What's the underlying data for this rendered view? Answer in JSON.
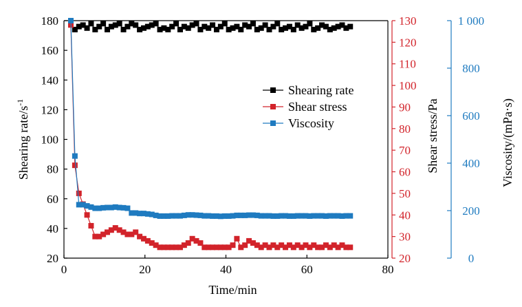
{
  "colors": {
    "shearing_rate": "#000000",
    "shear_stress": "#d2232a",
    "viscosity": "#1f7bc0"
  },
  "chart_data": {
    "type": "line",
    "xlabel": "Time/min",
    "xlim": [
      0,
      80
    ],
    "xticks": [
      "0",
      "20",
      "40",
      "60",
      "80"
    ],
    "axes": {
      "left": {
        "label": "Shearing rate/s",
        "label_superscript": "-1",
        "lim": [
          20,
          180
        ],
        "ticks": [
          "20",
          "40",
          "60",
          "80",
          "100",
          "120",
          "140",
          "160",
          "180"
        ]
      },
      "right_inner": {
        "label": "Shear stress/Pa",
        "lim": [
          20,
          130
        ],
        "ticks": [
          "20",
          "30",
          "40",
          "50",
          "60",
          "70",
          "80",
          "90",
          "100",
          "110",
          "120",
          "130"
        ]
      },
      "right_outer": {
        "label": "Viscosity/(mPa·s)",
        "lim": [
          0,
          1000
        ],
        "ticks": [
          "0",
          "200",
          "400",
          "600",
          "800",
          "1 000"
        ]
      }
    },
    "legend_position": "center-right",
    "series": [
      {
        "name": "Shearing rate",
        "axis": "left",
        "x": [
          1.7,
          2.7,
          3.7,
          4.7,
          5.7,
          6.7,
          7.7,
          8.7,
          9.7,
          10.7,
          11.7,
          12.7,
          13.7,
          14.7,
          15.7,
          16.7,
          17.7,
          18.7,
          19.7,
          20.7,
          21.7,
          22.7,
          23.7,
          24.7,
          25.7,
          26.7,
          27.7,
          28.7,
          29.7,
          30.7,
          31.7,
          32.7,
          33.7,
          34.7,
          35.7,
          36.7,
          37.7,
          38.7,
          39.7,
          40.7,
          41.7,
          42.7,
          43.7,
          44.7,
          45.7,
          46.7,
          47.7,
          48.7,
          49.7,
          50.7,
          51.7,
          52.7,
          53.7,
          54.7,
          55.7,
          56.7,
          57.7,
          58.7,
          59.7,
          60.7,
          61.7,
          62.7,
          63.7,
          64.7,
          65.7,
          66.7,
          67.7,
          68.7,
          69.7,
          70.7
        ],
        "values": [
          178,
          174,
          176,
          177,
          175,
          178,
          174,
          176,
          178,
          174,
          176,
          177,
          178,
          174,
          176,
          178,
          177,
          174,
          175,
          176,
          177,
          178,
          174,
          175,
          174,
          176,
          178,
          174,
          176,
          175,
          177,
          178,
          174,
          176,
          175,
          177,
          174,
          176,
          178,
          174,
          175,
          176,
          174,
          177,
          176,
          178,
          174,
          175,
          177,
          174,
          176,
          178,
          174,
          175,
          176,
          174,
          177,
          175,
          176,
          178,
          174,
          175,
          177,
          176,
          174,
          175,
          176,
          177,
          175,
          176
        ]
      },
      {
        "name": "Shear stress",
        "axis": "right_inner",
        "x": [
          1.7,
          2.7,
          3.7,
          4.7,
          5.7,
          6.7,
          7.7,
          8.7,
          9.7,
          10.7,
          11.7,
          12.7,
          13.7,
          14.7,
          15.7,
          16.7,
          17.7,
          18.7,
          19.7,
          20.7,
          21.7,
          22.7,
          23.7,
          24.7,
          25.7,
          26.7,
          27.7,
          28.7,
          29.7,
          30.7,
          31.7,
          32.7,
          33.7,
          34.7,
          35.7,
          36.7,
          37.7,
          38.7,
          39.7,
          40.7,
          41.7,
          42.7,
          43.7,
          44.7,
          45.7,
          46.7,
          47.7,
          48.7,
          49.7,
          50.7,
          51.7,
          52.7,
          53.7,
          54.7,
          55.7,
          56.7,
          57.7,
          58.7,
          59.7,
          60.7,
          61.7,
          62.7,
          63.7,
          64.7,
          65.7,
          66.7,
          67.7,
          68.7,
          69.7,
          70.7
        ],
        "values": [
          128,
          63,
          50,
          45,
          40,
          35,
          30,
          30,
          31,
          32,
          33,
          34,
          33,
          32,
          31,
          31,
          32,
          30,
          29,
          28,
          27,
          26,
          25,
          25,
          25,
          25,
          25,
          25,
          26,
          27,
          29,
          28,
          27,
          25,
          25,
          25,
          25,
          25,
          25,
          25,
          26,
          29,
          25,
          26,
          28,
          27,
          26,
          25,
          26,
          25,
          26,
          25,
          26,
          25,
          26,
          25,
          26,
          25,
          26,
          25,
          26,
          25,
          25,
          26,
          25,
          26,
          25,
          26,
          25,
          25
        ]
      },
      {
        "name": "Viscosity",
        "axis": "right_outer",
        "x": [
          1.7,
          2.7,
          3.7,
          4.7,
          5.7,
          6.7,
          7.7,
          8.7,
          9.7,
          10.7,
          11.7,
          12.7,
          13.7,
          14.7,
          15.7,
          16.7,
          17.7,
          18.7,
          19.7,
          20.7,
          21.7,
          22.7,
          23.7,
          24.7,
          25.7,
          26.7,
          27.7,
          28.7,
          29.7,
          30.7,
          31.7,
          32.7,
          33.7,
          34.7,
          35.7,
          36.7,
          37.7,
          38.7,
          39.7,
          40.7,
          41.7,
          42.7,
          43.7,
          44.7,
          45.7,
          46.7,
          47.7,
          48.7,
          49.7,
          50.7,
          51.7,
          52.7,
          53.7,
          54.7,
          55.7,
          56.7,
          57.7,
          58.7,
          59.7,
          60.7,
          61.7,
          62.7,
          63.7,
          64.7,
          65.7,
          66.7,
          67.7,
          68.7,
          69.7,
          70.7
        ],
        "values": [
          1000,
          430,
          225,
          225,
          220,
          215,
          210,
          210,
          212,
          213,
          213,
          215,
          213,
          212,
          210,
          190,
          190,
          188,
          188,
          186,
          184,
          180,
          177,
          177,
          177,
          178,
          178,
          178,
          180,
          182,
          182,
          181,
          180,
          178,
          178,
          177,
          177,
          176,
          177,
          177,
          178,
          180,
          180,
          180,
          181,
          181,
          180,
          178,
          178,
          178,
          177,
          177,
          178,
          178,
          177,
          177,
          178,
          178,
          178,
          177,
          178,
          178,
          178,
          177,
          178,
          178,
          178,
          177,
          178,
          178
        ]
      }
    ]
  }
}
